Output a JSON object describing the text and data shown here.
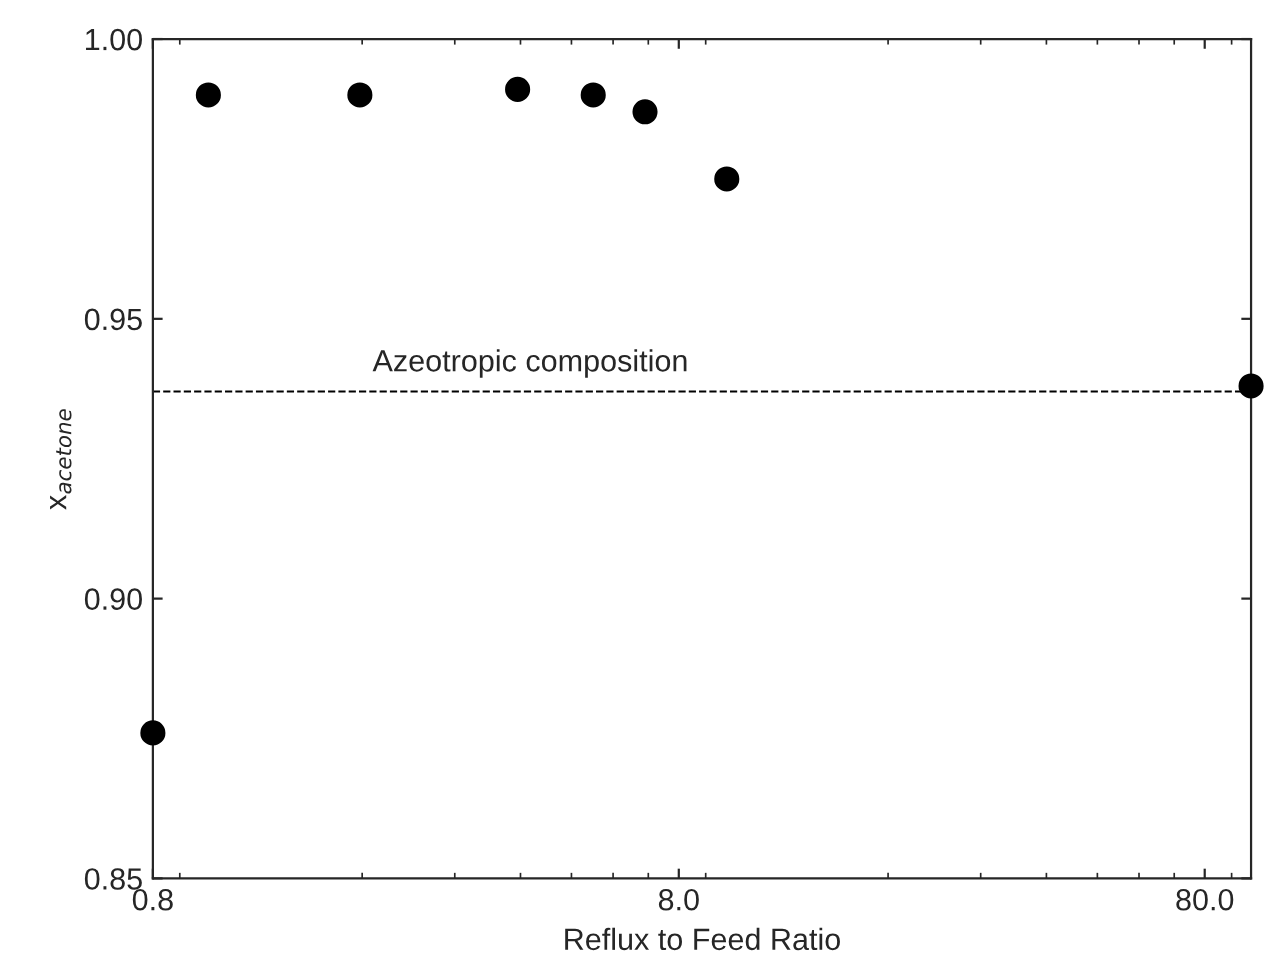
{
  "chart_data": {
    "type": "scatter",
    "xlabel": "Reflux to Feed Ratio",
    "ylabel": "x$_{acetone}$",
    "x": [
      0.8,
      1.02,
      1.98,
      3.95,
      5.5,
      6.9,
      9.87,
      98
    ],
    "values": [
      0.876,
      0.99,
      0.99,
      0.991,
      0.99,
      0.987,
      0.975,
      0.938
    ],
    "color": "#000000",
    "marker": "circle",
    "log": "x",
    "xlim": [
      0.8,
      98
    ],
    "xticks": [
      {
        "value": 0.8,
        "label": "0.8"
      },
      {
        "value": 8,
        "label": "8.0"
      },
      {
        "value": 80,
        "label": "80.0"
      }
    ],
    "ylim": [
      0.85,
      1.0
    ],
    "yticks": [
      {
        "value": 0.85,
        "label": "0.85"
      },
      {
        "value": 0.9,
        "label": "0.90"
      },
      {
        "value": 0.95,
        "label": "0.95"
      },
      {
        "value": 1.0,
        "label": "1.00"
      }
    ],
    "ref_lines": [
      {
        "axis": "y",
        "value": 0.937,
        "label": "Azeotropic composition",
        "line_style": "dashed",
        "color": "#000000"
      }
    ],
    "grid": false
  }
}
